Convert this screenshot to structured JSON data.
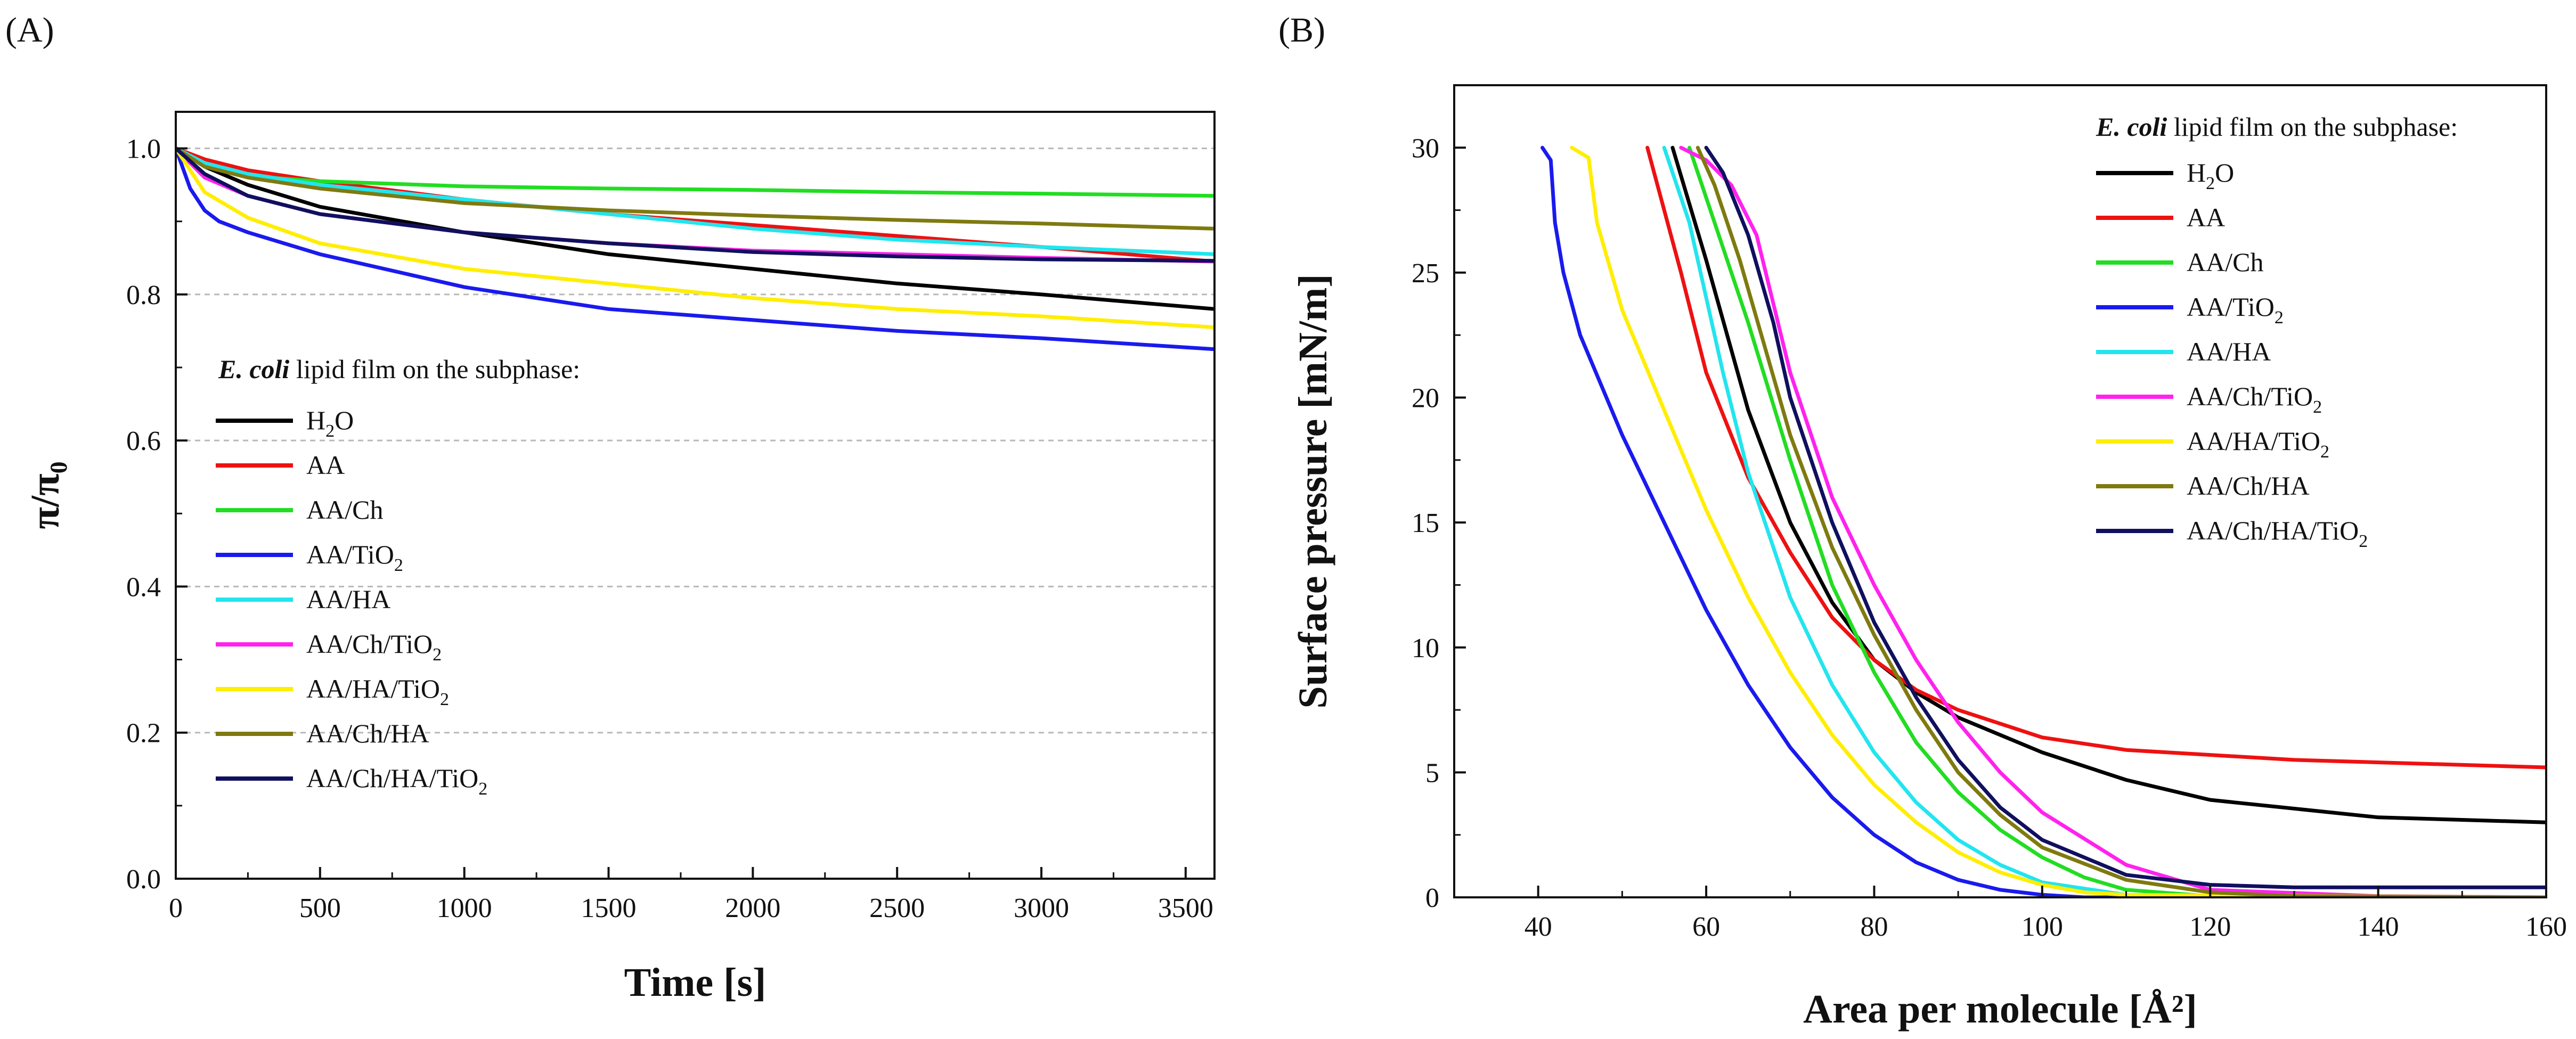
{
  "figure": {
    "panel_a_letter": "(A)",
    "panel_b_letter": "(B)"
  },
  "series_colors": {
    "H2O": "#000000",
    "AA": "#ee1111",
    "AA/Ch": "#22dd22",
    "AA/TiO2": "#1a1aee",
    "AA/HA": "#22e5ee",
    "AA/Ch/TiO2": "#ff22ee",
    "AA/HA/TiO2": "#ffee00",
    "AA/Ch/HA": "#7f7a10",
    "AA/Ch/HA/TiO2": "#10105f"
  },
  "chart_data": [
    {
      "type": "line",
      "panel": "(A)",
      "title": "",
      "xlabel": "Time [s]",
      "ylabel": "π/π₀",
      "xlim": [
        0,
        3600
      ],
      "ylim": [
        0,
        1.05
      ],
      "xticks": [
        0,
        500,
        1000,
        1500,
        2000,
        2500,
        3000,
        3500
      ],
      "xtick_labels": [
        "0",
        "500",
        "1000",
        "1500",
        "2000",
        "2500",
        "3000",
        "3500"
      ],
      "yticks": [
        0,
        0.2,
        0.4,
        0.6,
        0.8,
        1.0
      ],
      "ytick_labels": [
        "0.0",
        "0.2",
        "0.4",
        "0.6",
        "0.8",
        "1.0"
      ],
      "grid": "horizontal dashed",
      "legend_title_italic": "E. coli",
      "legend_title_rest": " lipid film on the subphase:",
      "legend_position": "center-left",
      "series": [
        {
          "name": "H2O",
          "label_main": "H",
          "label_sub": "2",
          "label_tail": "O",
          "x": [
            0,
            100,
            250,
            500,
            1000,
            1500,
            2000,
            2500,
            3000,
            3600
          ],
          "values": [
            1.0,
            0.975,
            0.95,
            0.92,
            0.885,
            0.855,
            0.835,
            0.815,
            0.8,
            0.78
          ]
        },
        {
          "name": "AA",
          "label_main": "AA",
          "label_sub": "",
          "label_tail": "",
          "x": [
            0,
            100,
            250,
            500,
            1000,
            1500,
            2000,
            2500,
            3000,
            3600
          ],
          "values": [
            1.0,
            0.985,
            0.97,
            0.955,
            0.93,
            0.91,
            0.895,
            0.88,
            0.865,
            0.845
          ]
        },
        {
          "name": "AA/Ch",
          "label_main": "AA/Ch",
          "label_sub": "",
          "label_tail": "",
          "x": [
            0,
            100,
            250,
            500,
            1000,
            1500,
            2000,
            2500,
            3000,
            3600
          ],
          "values": [
            1.0,
            0.975,
            0.962,
            0.955,
            0.948,
            0.945,
            0.943,
            0.94,
            0.938,
            0.935
          ]
        },
        {
          "name": "AA/TiO2",
          "label_main": "AA/TiO",
          "label_sub": "2",
          "label_tail": "",
          "x": [
            0,
            50,
            100,
            150,
            250,
            500,
            1000,
            1500,
            2000,
            2500,
            3000,
            3600
          ],
          "values": [
            1.0,
            0.945,
            0.915,
            0.9,
            0.885,
            0.855,
            0.81,
            0.78,
            0.765,
            0.75,
            0.74,
            0.725
          ]
        },
        {
          "name": "AA/HA",
          "label_main": "AA/HA",
          "label_sub": "",
          "label_tail": "",
          "x": [
            0,
            100,
            250,
            500,
            1000,
            1500,
            2000,
            2500,
            3000,
            3600
          ],
          "values": [
            1.0,
            0.98,
            0.965,
            0.95,
            0.93,
            0.91,
            0.89,
            0.875,
            0.865,
            0.855
          ]
        },
        {
          "name": "AA/Ch/TiO2",
          "label_main": "AA/Ch/TiO",
          "label_sub": "2",
          "label_tail": "",
          "x": [
            0,
            100,
            250,
            500,
            1000,
            1500,
            2000,
            2500,
            3000,
            3600
          ],
          "values": [
            1.0,
            0.96,
            0.935,
            0.91,
            0.885,
            0.87,
            0.86,
            0.855,
            0.85,
            0.845
          ]
        },
        {
          "name": "AA/HA/TiO2",
          "label_main": "AA/HA/TiO",
          "label_sub": "2",
          "label_tail": "",
          "x": [
            0,
            100,
            250,
            500,
            1000,
            1500,
            2000,
            2500,
            3000,
            3600
          ],
          "values": [
            1.0,
            0.94,
            0.905,
            0.87,
            0.835,
            0.815,
            0.795,
            0.78,
            0.77,
            0.755
          ]
        },
        {
          "name": "AA/Ch/HA",
          "label_main": "AA/Ch/HA",
          "label_sub": "",
          "label_tail": "",
          "x": [
            0,
            100,
            250,
            500,
            1000,
            1500,
            2000,
            2500,
            3000,
            3600
          ],
          "values": [
            1.0,
            0.975,
            0.96,
            0.945,
            0.925,
            0.915,
            0.908,
            0.902,
            0.897,
            0.89
          ]
        },
        {
          "name": "AA/Ch/HA/TiO2",
          "label_main": "AA/Ch/HA/TiO",
          "label_sub": "2",
          "label_tail": "",
          "x": [
            0,
            100,
            250,
            500,
            1000,
            1500,
            2000,
            2500,
            3000,
            3600
          ],
          "values": [
            1.0,
            0.965,
            0.935,
            0.91,
            0.885,
            0.87,
            0.858,
            0.852,
            0.848,
            0.846
          ]
        }
      ]
    },
    {
      "type": "line",
      "panel": "(B)",
      "title": "",
      "xlabel": "Area per molecule [Å²]",
      "ylabel": "Surface pressure [mN/m]",
      "xlim": [
        30,
        160
      ],
      "ylim": [
        0,
        32.5
      ],
      "xticks": [
        40,
        60,
        80,
        100,
        120,
        140,
        160
      ],
      "xtick_labels": [
        "40",
        "60",
        "80",
        "100",
        "120",
        "140",
        "160"
      ],
      "yticks": [
        0,
        5,
        10,
        15,
        20,
        25,
        30
      ],
      "ytick_labels": [
        "0",
        "5",
        "10",
        "15",
        "20",
        "25",
        "30"
      ],
      "grid": "none",
      "legend_title_italic": "E. coli",
      "legend_title_rest": " lipid film on the subphase:",
      "legend_position": "top-right",
      "series": [
        {
          "name": "H2O",
          "label_main": "H",
          "label_sub": "2",
          "label_tail": "O",
          "x": [
            56,
            60,
            65,
            70,
            75,
            80,
            85,
            90,
            100,
            110,
            120,
            140,
            160
          ],
          "values": [
            30,
            25.5,
            19.5,
            15,
            11.8,
            9.5,
            8.2,
            7.2,
            5.8,
            4.7,
            3.9,
            3.2,
            3.0
          ]
        },
        {
          "name": "AA",
          "label_main": "AA",
          "label_sub": "",
          "label_tail": "",
          "x": [
            53,
            57,
            60,
            65,
            70,
            75,
            80,
            85,
            90,
            100,
            110,
            130,
            160
          ],
          "values": [
            30,
            25,
            21,
            16.8,
            13.8,
            11.2,
            9.5,
            8.3,
            7.5,
            6.4,
            5.9,
            5.5,
            5.2
          ]
        },
        {
          "name": "AA/Ch",
          "label_main": "AA/Ch",
          "label_sub": "",
          "label_tail": "",
          "x": [
            58,
            60,
            65,
            70,
            75,
            80,
            85,
            90,
            95,
            100,
            105,
            110,
            120,
            130,
            160
          ],
          "values": [
            30,
            28,
            23,
            17.5,
            12.5,
            9,
            6.2,
            4.2,
            2.7,
            1.6,
            0.8,
            0.3,
            0.05,
            0,
            0
          ]
        },
        {
          "name": "AA/TiO2",
          "label_main": "AA/TiO",
          "label_sub": "2",
          "label_tail": "",
          "x": [
            40.5,
            41.5,
            42,
            43,
            45,
            50,
            55,
            60,
            65,
            70,
            75,
            80,
            85,
            90,
            95,
            100,
            105,
            110,
            160
          ],
          "values": [
            30,
            29.5,
            27,
            25,
            22.5,
            18.5,
            15,
            11.5,
            8.5,
            6,
            4,
            2.5,
            1.4,
            0.7,
            0.3,
            0.1,
            0,
            0,
            0
          ]
        },
        {
          "name": "AA/HA",
          "label_main": "AA/HA",
          "label_sub": "",
          "label_tail": "",
          "x": [
            55,
            58,
            62,
            65,
            70,
            75,
            80,
            85,
            90,
            95,
            100,
            110,
            120,
            160
          ],
          "values": [
            30,
            27,
            21,
            17,
            12,
            8.5,
            5.8,
            3.8,
            2.3,
            1.3,
            0.6,
            0.1,
            0,
            0
          ]
        },
        {
          "name": "AA/Ch/TiO2",
          "label_main": "AA/Ch/TiO",
          "label_sub": "2",
          "label_tail": "",
          "x": [
            57,
            60,
            63,
            66,
            70,
            75,
            80,
            85,
            90,
            95,
            100,
            110,
            120,
            140,
            160
          ],
          "values": [
            30,
            29.5,
            28.5,
            26.5,
            21,
            16,
            12.5,
            9.5,
            7,
            5,
            3.4,
            1.3,
            0.3,
            0.05,
            0
          ]
        },
        {
          "name": "AA/HA/TiO2",
          "label_main": "AA/HA/TiO",
          "label_sub": "2",
          "label_tail": "",
          "x": [
            44,
            46,
            47,
            50,
            55,
            60,
            65,
            70,
            75,
            80,
            85,
            90,
            95,
            100,
            105,
            110,
            160
          ],
          "values": [
            30,
            29.6,
            27,
            23.5,
            19.5,
            15.5,
            12,
            9,
            6.5,
            4.5,
            3,
            1.8,
            1,
            0.5,
            0.2,
            0.1,
            0
          ]
        },
        {
          "name": "AA/Ch/HA",
          "label_main": "AA/Ch/HA",
          "label_sub": "",
          "label_tail": "",
          "x": [
            59,
            61,
            64,
            67,
            70,
            75,
            80,
            85,
            90,
            95,
            100,
            110,
            120,
            130,
            160
          ],
          "values": [
            30,
            28.5,
            25.5,
            22,
            18.5,
            14,
            10.5,
            7.5,
            5,
            3.3,
            2,
            0.7,
            0.2,
            0.05,
            0
          ]
        },
        {
          "name": "AA/Ch/HA/TiO2",
          "label_main": "AA/Ch/HA/TiO",
          "label_sub": "2",
          "label_tail": "",
          "x": [
            60,
            62,
            65,
            68,
            70,
            75,
            80,
            85,
            90,
            95,
            100,
            110,
            120,
            130,
            160
          ],
          "values": [
            30,
            29,
            26.5,
            23,
            20,
            15,
            11,
            8,
            5.5,
            3.6,
            2.3,
            0.9,
            0.5,
            0.4,
            0.4
          ]
        }
      ]
    }
  ]
}
